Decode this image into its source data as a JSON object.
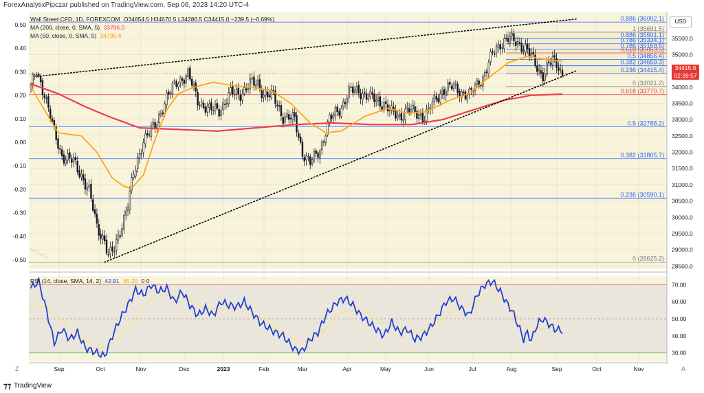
{
  "header": {
    "publisher": "ForexAnalytixPipczar published on TradingView.com, Sep 06, 2023 14:20 UTC-4"
  },
  "legend": {
    "symbol": "Wall Street CFD, 1D, FOREXCOM",
    "ohlc": "O34654.5 H34670.5 L34286.5 C34415.0 −239.5 (−0.69%)",
    "ma200_label": "MA (200, close, 0, SMA, 5)",
    "ma200_value": "33786.0",
    "ma50_label": "MA (50, close, 0, SMA, 5)",
    "ma50_value": "34795.4"
  },
  "rsi_legend": {
    "label": "RSI (14, close, SMA, 14, 2)",
    "rsi_value": "42.91",
    "sma_value": "45.20",
    "extra": "0  0"
  },
  "price_badge": {
    "price": "34415.0",
    "countdown": "02:39:57"
  },
  "currency": "USD",
  "footer": {
    "brand": "TradingView"
  },
  "corner_left": "Z",
  "corner_right": "A",
  "colors": {
    "background": "#f8f4dc",
    "up": "#131722",
    "down": "#131722",
    "ma200": "#ef3b4f",
    "ma50": "#ffa31a",
    "rsi": "#1e3fd1",
    "rsi_sma": "#ffe27a",
    "fib_line": "#2962ff",
    "fib_red": "#e53935",
    "trendline": "#000000"
  },
  "chart_data": {
    "type": "candlestick",
    "symbol": "Wall Street CFD",
    "timeframe": "1D",
    "x_axis_ticks": [
      "Sep",
      "Oct",
      "Nov",
      "Dec",
      "2023",
      "Feb",
      "Mar",
      "Apr",
      "May",
      "Jun",
      "Jul",
      "Aug",
      "Sep",
      "Oct",
      "Nov"
    ],
    "price_axis": {
      "range": [
        28400,
        36300
      ],
      "ticks": [
        35500,
        35000,
        34500,
        34000,
        33500,
        33000,
        32500,
        32000,
        31500,
        31000,
        30500,
        30000,
        29500,
        29000,
        28500
      ]
    },
    "left_axis_labels": [
      "0.50",
      "0.40",
      "0.30",
      "0.20",
      "0.10",
      "0.00",
      "-0.10",
      "-0.20",
      "-0.30",
      "-0.40",
      "-0.50"
    ],
    "left_axis_range": [
      -0.5,
      0.5
    ],
    "anchors": [
      [
        0,
        34000
      ],
      [
        3,
        34500
      ],
      [
        7,
        33800
      ],
      [
        12,
        32600
      ],
      [
        16,
        31900
      ],
      [
        22,
        31700
      ],
      [
        26,
        31300
      ],
      [
        30,
        30800
      ],
      [
        34,
        29700
      ],
      [
        38,
        29300
      ],
      [
        40,
        28800
      ],
      [
        43,
        29000
      ],
      [
        46,
        29600
      ],
      [
        50,
        30400
      ],
      [
        53,
        31300
      ],
      [
        58,
        32400
      ],
      [
        64,
        32800
      ],
      [
        70,
        33700
      ],
      [
        76,
        34200
      ],
      [
        81,
        34400
      ],
      [
        86,
        33600
      ],
      [
        92,
        33300
      ],
      [
        97,
        33300
      ],
      [
        103,
        33800
      ],
      [
        108,
        33800
      ],
      [
        113,
        34100
      ],
      [
        117,
        34100
      ],
      [
        120,
        33800
      ],
      [
        125,
        33700
      ],
      [
        130,
        33100
      ],
      [
        136,
        33000
      ],
      [
        140,
        32000
      ],
      [
        144,
        31650
      ],
      [
        149,
        32100
      ],
      [
        154,
        33000
      ],
      [
        160,
        33400
      ],
      [
        164,
        33850
      ],
      [
        169,
        33900
      ],
      [
        174,
        33700
      ],
      [
        178,
        33600
      ],
      [
        182,
        33500
      ],
      [
        186,
        33200
      ],
      [
        190,
        33100
      ],
      [
        194,
        33300
      ],
      [
        198,
        33200
      ],
      [
        203,
        33100
      ],
      [
        209,
        33650
      ],
      [
        213,
        33950
      ],
      [
        218,
        34000
      ],
      [
        222,
        33850
      ],
      [
        226,
        33750
      ],
      [
        230,
        34100
      ],
      [
        233,
        34300
      ],
      [
        238,
        35000
      ],
      [
        242,
        35350
      ],
      [
        246,
        35500
      ],
      [
        249,
        35400
      ],
      [
        253,
        35300
      ],
      [
        256,
        35150
      ],
      [
        259,
        34800
      ],
      [
        262,
        34500
      ],
      [
        264,
        34400
      ],
      [
        267,
        34700
      ],
      [
        269,
        34800
      ],
      [
        272,
        34650
      ],
      [
        274,
        34400
      ]
    ],
    "ma50_anchors": [
      [
        0,
        34000
      ],
      [
        14,
        32600
      ],
      [
        26,
        32500
      ],
      [
        34,
        32000
      ],
      [
        42,
        31200
      ],
      [
        48,
        30950
      ],
      [
        52,
        30900
      ],
      [
        58,
        31300
      ],
      [
        64,
        32400
      ],
      [
        70,
        33300
      ],
      [
        76,
        33800
      ],
      [
        84,
        34000
      ],
      [
        94,
        34150
      ],
      [
        104,
        34050
      ],
      [
        114,
        34000
      ],
      [
        124,
        33900
      ],
      [
        134,
        33500
      ],
      [
        144,
        32900
      ],
      [
        152,
        32600
      ],
      [
        160,
        32650
      ],
      [
        172,
        33100
      ],
      [
        184,
        33350
      ],
      [
        194,
        33200
      ],
      [
        204,
        33250
      ],
      [
        216,
        33600
      ],
      [
        226,
        33800
      ],
      [
        234,
        34200
      ],
      [
        246,
        34750
      ],
      [
        256,
        34950
      ],
      [
        266,
        34850
      ],
      [
        274,
        34795
      ]
    ],
    "ma200_anchors": [
      [
        0,
        34100
      ],
      [
        14,
        33800
      ],
      [
        28,
        33400
      ],
      [
        40,
        33100
      ],
      [
        56,
        32750
      ],
      [
        76,
        32700
      ],
      [
        96,
        32650
      ],
      [
        116,
        32750
      ],
      [
        136,
        32850
      ],
      [
        156,
        32900
      ],
      [
        176,
        32850
      ],
      [
        196,
        32850
      ],
      [
        212,
        33000
      ],
      [
        228,
        33300
      ],
      [
        244,
        33600
      ],
      [
        258,
        33750
      ],
      [
        274,
        33786
      ]
    ],
    "trendline_upper": {
      "start": [
        3,
        34330
      ],
      "end": [
        282,
        36100
      ]
    },
    "trendline_lower": {
      "start": [
        38,
        28620
      ],
      "end": [
        281,
        34500
      ]
    },
    "fibonacci_sets": [
      {
        "levels": [
          {
            "ratio": "0.886",
            "value": "36002.1"
          },
          {
            "ratio": "0.618",
            "value": "35053.5"
          },
          {
            "ratio": "0.5",
            "value": "34856.4"
          },
          {
            "ratio": "0.382",
            "value": "34659.3"
          },
          {
            "ratio": "0.236",
            "value": "34415.4"
          },
          {
            "ratio": "0",
            "value": "34021.2"
          },
          {
            "ratio": "0.5",
            "value": "32788.2"
          },
          {
            "ratio": "0.382",
            "value": "31805.7"
          },
          {
            "ratio": "0.236",
            "value": "30590.1"
          },
          {
            "ratio": "0",
            "value": "28625.2"
          }
        ]
      },
      {
        "levels": [
          {
            "ratio": "1",
            "value": "35691.5"
          },
          {
            "ratio": "0.886",
            "value": "35501.1"
          },
          {
            "ratio": "0.786",
            "value": "35334.1"
          },
          {
            "ratio": "0.786",
            "value": "35169.5"
          },
          {
            "ratio": "0.618",
            "value": "33770.7"
          }
        ]
      }
    ],
    "rsi": {
      "range": [
        25,
        75
      ],
      "ticks": [
        70,
        60,
        50,
        40,
        30
      ],
      "upper_band": 70,
      "lower_band": 30,
      "anchors": [
        [
          0,
          68
        ],
        [
          4,
          72
        ],
        [
          8,
          55
        ],
        [
          12,
          36
        ],
        [
          16,
          44
        ],
        [
          20,
          38
        ],
        [
          24,
          42
        ],
        [
          28,
          33
        ],
        [
          34,
          30
        ],
        [
          38,
          28
        ],
        [
          42,
          40
        ],
        [
          46,
          50
        ],
        [
          50,
          58
        ],
        [
          54,
          67
        ],
        [
          58,
          64
        ],
        [
          62,
          70
        ],
        [
          66,
          66
        ],
        [
          70,
          68
        ],
        [
          74,
          60
        ],
        [
          78,
          66
        ],
        [
          82,
          58
        ],
        [
          86,
          52
        ],
        [
          90,
          56
        ],
        [
          94,
          52
        ],
        [
          98,
          60
        ],
        [
          102,
          58
        ],
        [
          106,
          57
        ],
        [
          110,
          60
        ],
        [
          114,
          54
        ],
        [
          118,
          48
        ],
        [
          122,
          45
        ],
        [
          126,
          42
        ],
        [
          130,
          40
        ],
        [
          136,
          32
        ],
        [
          140,
          31
        ],
        [
          144,
          38
        ],
        [
          148,
          42
        ],
        [
          152,
          52
        ],
        [
          158,
          60
        ],
        [
          162,
          62
        ],
        [
          166,
          58
        ],
        [
          170,
          52
        ],
        [
          174,
          48
        ],
        [
          178,
          44
        ],
        [
          182,
          40
        ],
        [
          186,
          48
        ],
        [
          190,
          42
        ],
        [
          194,
          44
        ],
        [
          198,
          38
        ],
        [
          202,
          40
        ],
        [
          206,
          45
        ],
        [
          210,
          52
        ],
        [
          214,
          60
        ],
        [
          218,
          62
        ],
        [
          222,
          56
        ],
        [
          226,
          52
        ],
        [
          230,
          64
        ],
        [
          234,
          70
        ],
        [
          238,
          72
        ],
        [
          242,
          66
        ],
        [
          246,
          58
        ],
        [
          248,
          55
        ],
        [
          252,
          44
        ],
        [
          254,
          38
        ],
        [
          256,
          42
        ],
        [
          258,
          37
        ],
        [
          260,
          44
        ],
        [
          262,
          48
        ],
        [
          264,
          50
        ],
        [
          266,
          48
        ],
        [
          268,
          46
        ],
        [
          270,
          44
        ],
        [
          274,
          43
        ]
      ],
      "sma_anchors": [
        [
          0,
          58
        ],
        [
          10,
          56
        ],
        [
          20,
          44
        ],
        [
          30,
          36
        ],
        [
          40,
          34
        ],
        [
          50,
          44
        ],
        [
          60,
          60
        ],
        [
          70,
          64
        ],
        [
          80,
          62
        ],
        [
          90,
          56
        ],
        [
          100,
          56
        ],
        [
          110,
          56
        ],
        [
          120,
          50
        ],
        [
          130,
          42
        ],
        [
          140,
          36
        ],
        [
          150,
          42
        ],
        [
          160,
          54
        ],
        [
          170,
          56
        ],
        [
          180,
          48
        ],
        [
          190,
          44
        ],
        [
          200,
          42
        ],
        [
          210,
          48
        ],
        [
          220,
          56
        ],
        [
          230,
          60
        ],
        [
          238,
          66
        ],
        [
          246,
          60
        ],
        [
          254,
          46
        ],
        [
          262,
          44
        ],
        [
          274,
          45
        ]
      ]
    }
  }
}
